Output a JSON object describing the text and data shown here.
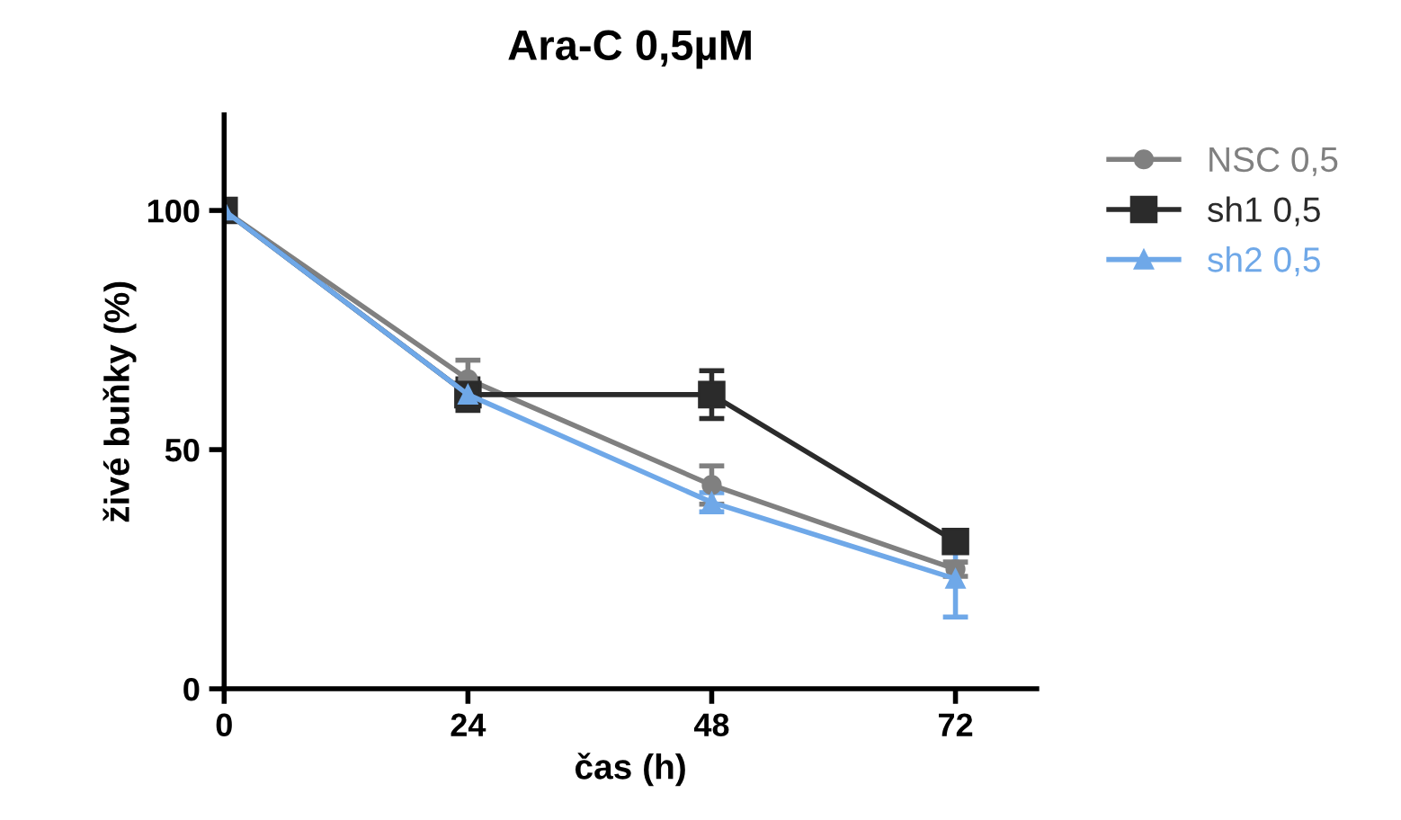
{
  "chart_data": {
    "type": "line",
    "title": "Ara-C 0,5µM",
    "xlabel": "čas (h)",
    "ylabel": "živé buňky (%)",
    "x": [
      0,
      24,
      48,
      72
    ],
    "xlim": [
      0,
      80
    ],
    "xticks": [
      0,
      24,
      48,
      72
    ],
    "ylim": [
      0,
      120
    ],
    "yticks": [
      0,
      50,
      100
    ],
    "grid": false,
    "legend": "top right",
    "line_style": "solid",
    "series": [
      {
        "name": "NSC 0,5",
        "color": "#808080",
        "marker": "circle",
        "values": [
          100,
          64.7,
          42.6,
          25
        ],
        "errors": [
          null,
          4,
          4,
          1.5
        ]
      },
      {
        "name": "sh1 0,5",
        "color": "#2b2b2b",
        "marker": "square",
        "values": [
          100,
          61.5,
          61.5,
          30.8
        ],
        "errors": [
          null,
          3.3,
          5,
          2
        ]
      },
      {
        "name": "sh2 0,5",
        "color": "#6fa8e8",
        "marker": "triangle",
        "values": [
          100,
          61.5,
          39,
          23
        ],
        "errors": [
          null,
          2,
          2,
          8
        ]
      }
    ]
  }
}
